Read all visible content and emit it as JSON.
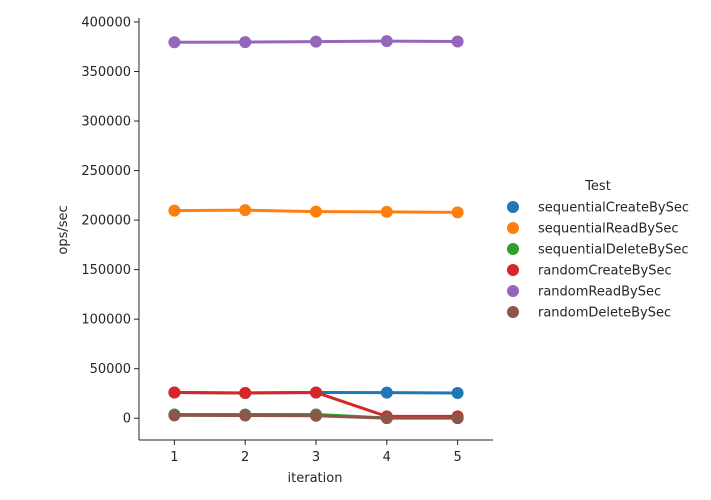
{
  "chart_data": {
    "type": "line",
    "xlabel": "iteration",
    "ylabel": "ops/sec",
    "x": [
      1,
      2,
      3,
      4,
      5
    ],
    "xlim": [
      0.5,
      5.5
    ],
    "ylim": [
      -22000,
      404000
    ],
    "yticks": [
      0,
      50000,
      100000,
      150000,
      200000,
      250000,
      300000,
      350000,
      400000
    ],
    "ytick_labels": [
      "0",
      "50000",
      "100000",
      "150000",
      "200000",
      "250000",
      "300000",
      "350000",
      "400000"
    ],
    "xtick_labels": [
      "1",
      "2",
      "3",
      "4",
      "5"
    ],
    "grid": false,
    "legend_title": "Test",
    "legend_position": "right",
    "series": [
      {
        "name": "sequentialCreateBySec",
        "color": "#1f77b4",
        "values": [
          26000,
          25500,
          26000,
          25800,
          25500
        ]
      },
      {
        "name": " sequentialReadBySec",
        "color": "#ff7f0e",
        "values": [
          209500,
          210000,
          208500,
          208300,
          207800
        ]
      },
      {
        "name": "sequentialDeleteBySec",
        "color": "#2ca02c",
        "values": [
          3700,
          3700,
          3700,
          200,
          200
        ]
      },
      {
        "name": " randomCreateBySec",
        "color": "#d62728",
        "values": [
          26000,
          25500,
          26000,
          1800,
          1800
        ]
      },
      {
        "name": "randomReadBySec",
        "color": "#9467bd",
        "values": [
          379500,
          379700,
          380200,
          380700,
          380300
        ]
      },
      {
        "name": "randomDeleteBySec",
        "color": "#8c564b",
        "values": [
          2800,
          2700,
          2500,
          100,
          100
        ]
      }
    ]
  }
}
